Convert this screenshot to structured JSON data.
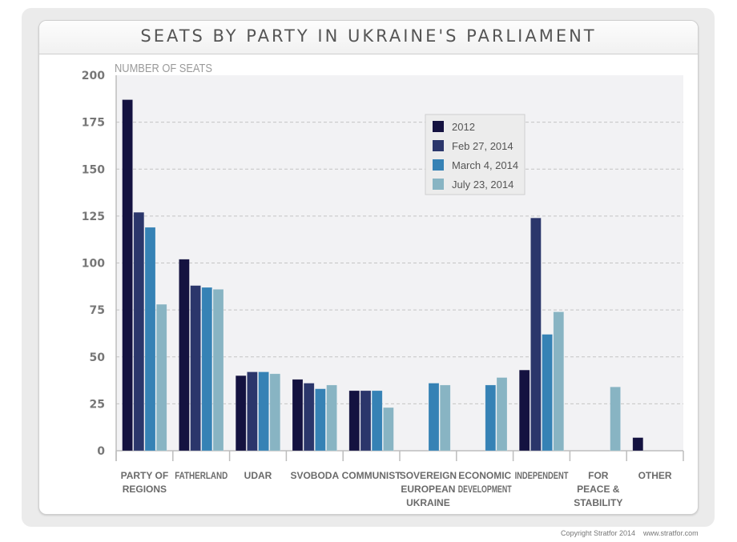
{
  "title": "SEATS BY PARTY IN UKRAINE'S PARLIAMENT",
  "footer": "Copyright Stratfor 2014    www.stratfor.com",
  "colors": {
    "2012": "#141240",
    "Feb 27, 2014": "#2b366b",
    "March 4, 2014": "#3682b5",
    "July 23, 2014": "#88b4c3",
    "plot_bg": "#f2f2f4",
    "grid": "#c4c4c4",
    "axis": "#bdbdbd",
    "tick_text": "#777777"
  },
  "chart_data": {
    "type": "bar",
    "title": "SEATS BY PARTY IN UKRAINE'S PARLIAMENT",
    "xlabel": "",
    "ylabel": "NUMBER OF SEATS",
    "ylim": [
      0,
      200
    ],
    "yticks": [
      0,
      25,
      50,
      75,
      100,
      125,
      150,
      175,
      200
    ],
    "grid": true,
    "legend_position": "top-center-right",
    "categories": [
      "PARTY OF REGIONS",
      "FATHERLAND",
      "UDAR",
      "SVOBODA",
      "COMMUNIST",
      "SOVEREIGN EUROPEAN UKRAINE",
      "ECONOMIC DEVELOPMENT",
      "INDEPENDENT",
      "FOR PEACE & STABILITY",
      "OTHER"
    ],
    "category_label_lines": [
      [
        "PARTY OF",
        "REGIONS"
      ],
      [
        "FATHERLAND"
      ],
      [
        "UDAR"
      ],
      [
        "SVOBODA"
      ],
      [
        "COMMUNIST"
      ],
      [
        "SOVEREIGN",
        "EUROPEAN",
        "UKRAINE"
      ],
      [
        "ECONOMIC",
        "DEVELOPMENT"
      ],
      [
        "INDEPENDENT"
      ],
      [
        "FOR",
        "PEACE &",
        "STABILITY"
      ],
      [
        "OTHER"
      ]
    ],
    "series": [
      {
        "name": "2012",
        "values": [
          187,
          102,
          40,
          38,
          32,
          null,
          null,
          43,
          null,
          7
        ]
      },
      {
        "name": "Feb 27, 2014",
        "values": [
          127,
          88,
          42,
          36,
          32,
          null,
          null,
          124,
          null,
          null
        ]
      },
      {
        "name": "March 4, 2014",
        "values": [
          119,
          87,
          42,
          33,
          32,
          36,
          35,
          62,
          null,
          null
        ]
      },
      {
        "name": "July 23, 2014",
        "values": [
          78,
          86,
          41,
          35,
          23,
          35,
          39,
          74,
          34,
          null
        ]
      }
    ]
  }
}
